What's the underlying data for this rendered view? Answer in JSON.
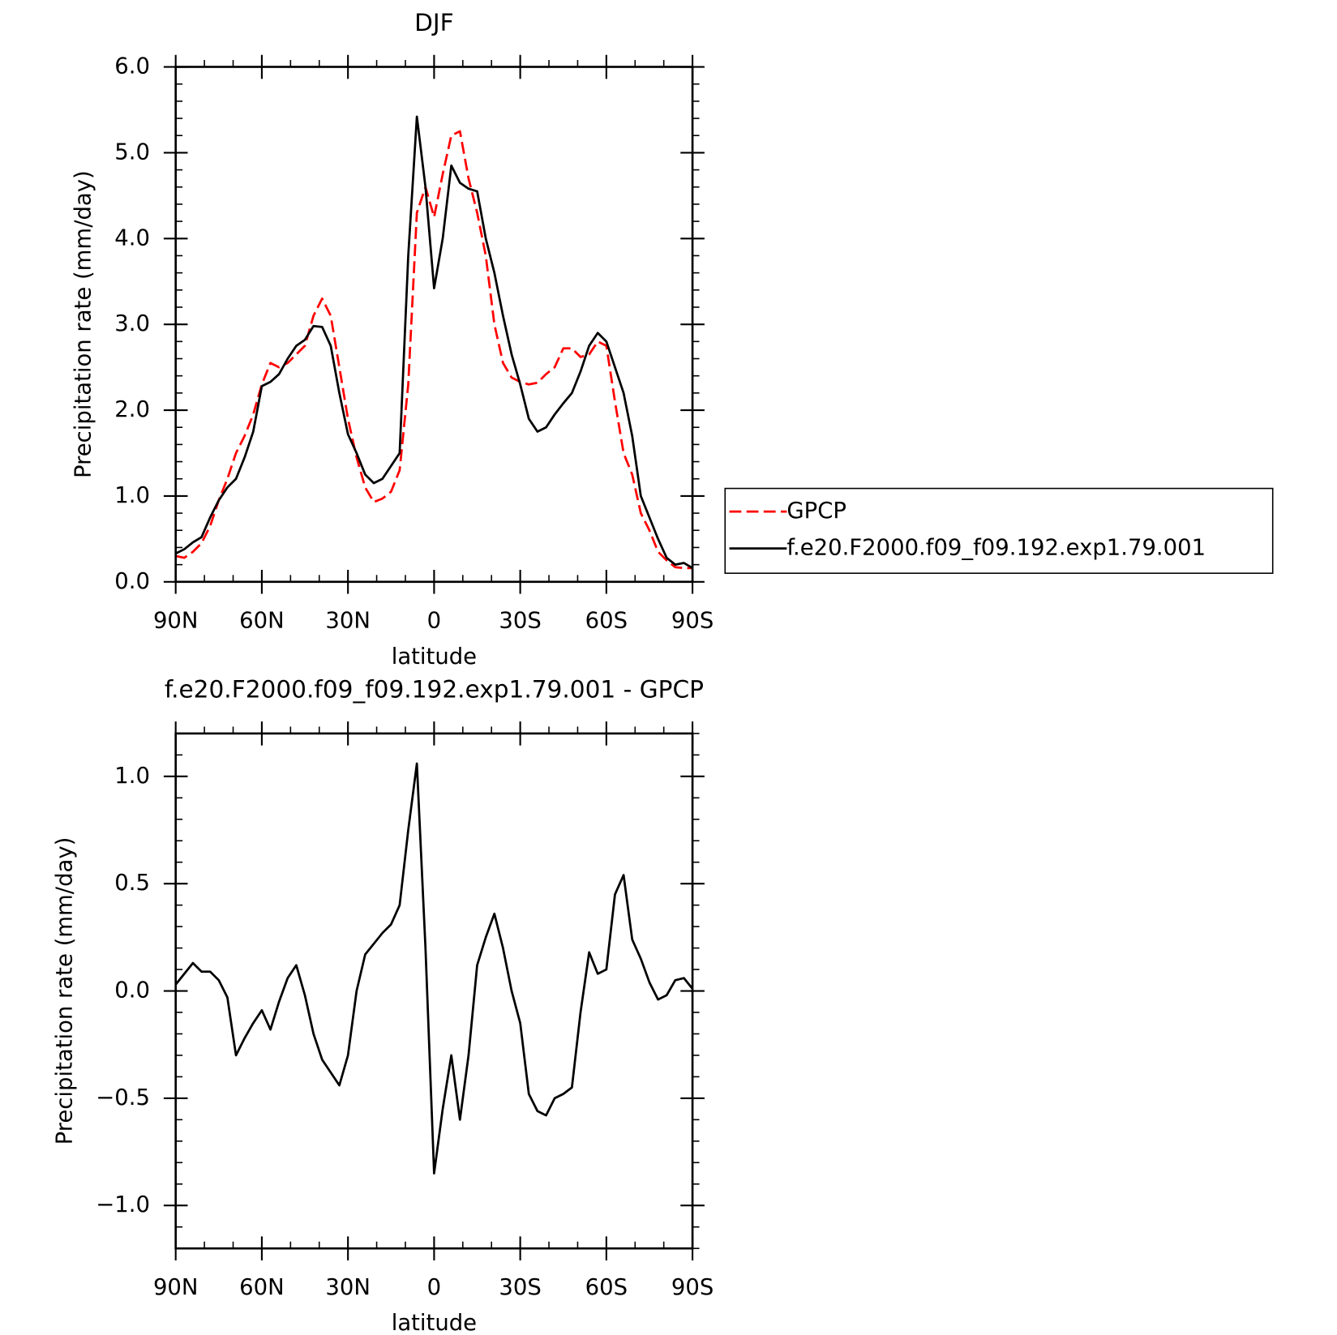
{
  "chart_data": [
    {
      "type": "line",
      "title": "DJF",
      "xlabel": "latitude",
      "ylabel": "Precipitation rate (mm/day)",
      "x": [
        90,
        87,
        84,
        81,
        78,
        75,
        72,
        69,
        66,
        63,
        60,
        57,
        54,
        51,
        48,
        45,
        42,
        39,
        36,
        33,
        30,
        27,
        24,
        21,
        18,
        15,
        12,
        9,
        6,
        3,
        0,
        -3,
        -6,
        -9,
        -12,
        -15,
        -18,
        -21,
        -24,
        -27,
        -30,
        -33,
        -36,
        -39,
        -42,
        -45,
        -48,
        -51,
        -54,
        -57,
        -60,
        -63,
        -66,
        -69,
        -72,
        -75,
        -78,
        -81,
        -84,
        -87,
        -90
      ],
      "series": [
        {
          "name": "GPCP",
          "color": "#ff0000",
          "dashed": true,
          "values": [
            0.3,
            0.28,
            0.35,
            0.45,
            0.65,
            0.95,
            1.2,
            1.5,
            1.7,
            1.95,
            2.3,
            2.55,
            2.5,
            2.55,
            2.65,
            2.75,
            3.1,
            3.3,
            3.1,
            2.5,
            1.9,
            1.45,
            1.1,
            0.93,
            0.97,
            1.05,
            1.3,
            2.3,
            4.3,
            4.6,
            4.25,
            4.75,
            5.2,
            5.25,
            4.7,
            4.3,
            3.8,
            3.0,
            2.55,
            2.38,
            2.33,
            2.3,
            2.32,
            2.42,
            2.5,
            2.72,
            2.72,
            2.62,
            2.65,
            2.8,
            2.75,
            2.1,
            1.5,
            1.25,
            0.8,
            0.6,
            0.35,
            0.25,
            0.17,
            0.16,
            0.16
          ]
        },
        {
          "name": "f.e20.F2000.f09_f09.192.exp1.79.001",
          "color": "#000000",
          "dashed": false,
          "values": [
            0.33,
            0.38,
            0.46,
            0.52,
            0.75,
            0.95,
            1.1,
            1.2,
            1.45,
            1.75,
            2.28,
            2.33,
            2.42,
            2.6,
            2.75,
            2.82,
            2.98,
            2.97,
            2.75,
            2.2,
            1.72,
            1.5,
            1.25,
            1.15,
            1.2,
            1.35,
            1.5,
            3.8,
            5.42,
            4.6,
            3.42,
            4.0,
            4.85,
            4.65,
            4.58,
            4.55,
            4.0,
            3.6,
            3.1,
            2.65,
            2.3,
            1.9,
            1.75,
            1.8,
            1.95,
            2.08,
            2.2,
            2.45,
            2.75,
            2.9,
            2.8,
            2.5,
            2.2,
            1.7,
            1.0,
            0.75,
            0.5,
            0.28,
            0.2,
            0.22,
            0.16
          ]
        }
      ],
      "xlim": [
        90,
        -90
      ],
      "xticks": [
        {
          "value": 90,
          "label": "90N"
        },
        {
          "value": 60,
          "label": "60N"
        },
        {
          "value": 30,
          "label": "30N"
        },
        0,
        {
          "value": -30,
          "label": "30S"
        },
        {
          "value": -60,
          "label": "60S"
        },
        {
          "value": -90,
          "label": "90S"
        }
      ],
      "ylim": [
        0,
        6
      ],
      "yticks": [
        {
          "value": 0,
          "label": "0.0"
        },
        {
          "value": 1,
          "label": "1.0"
        },
        {
          "value": 2,
          "label": "2.0"
        },
        {
          "value": 3,
          "label": "3.0"
        },
        {
          "value": 4,
          "label": "4.0"
        },
        {
          "value": 5,
          "label": "5.0"
        },
        {
          "value": 6,
          "label": "6.0"
        }
      ],
      "legend": "right"
    },
    {
      "type": "line",
      "title": "f.e20.F2000.f09_f09.192.exp1.79.001 - GPCP",
      "xlabel": "latitude",
      "ylabel": "Precipitation rate (mm/day)",
      "x": [
        90,
        87,
        84,
        81,
        78,
        75,
        72,
        69,
        66,
        63,
        60,
        57,
        54,
        51,
        48,
        45,
        42,
        39,
        36,
        33,
        30,
        27,
        24,
        21,
        18,
        15,
        12,
        9,
        6,
        3,
        0,
        -3,
        -6,
        -9,
        -12,
        -15,
        -18,
        -21,
        -24,
        -27,
        -30,
        -33,
        -36,
        -39,
        -42,
        -45,
        -48,
        -51,
        -54,
        -57,
        -60,
        -63,
        -66,
        -69,
        -72,
        -75,
        -78,
        -81,
        -84,
        -87,
        -90
      ],
      "values": [
        0.03,
        0.08,
        0.13,
        0.09,
        0.09,
        0.05,
        -0.03,
        -0.3,
        -0.22,
        -0.15,
        -0.09,
        -0.18,
        -0.05,
        0.06,
        0.12,
        -0.02,
        -0.2,
        -0.32,
        -0.38,
        -0.44,
        -0.3,
        0.0,
        0.17,
        0.22,
        0.27,
        0.31,
        0.4,
        0.75,
        1.06,
        0.2,
        -0.85,
        -0.55,
        -0.3,
        -0.6,
        -0.3,
        0.12,
        0.25,
        0.36,
        0.2,
        0.0,
        -0.15,
        -0.48,
        -0.56,
        -0.58,
        -0.5,
        -0.48,
        -0.45,
        -0.1,
        0.18,
        0.08,
        0.1,
        0.45,
        0.54,
        0.24,
        0.15,
        0.04,
        -0.04,
        -0.02,
        0.05,
        0.06,
        0.01
      ],
      "color": "#000000",
      "xlim": [
        90,
        -90
      ],
      "xticks": [
        {
          "value": 90,
          "label": "90N"
        },
        {
          "value": 60,
          "label": "60N"
        },
        {
          "value": 30,
          "label": "30N"
        },
        0,
        {
          "value": -30,
          "label": "30S"
        },
        {
          "value": -60,
          "label": "60S"
        },
        {
          "value": -90,
          "label": "90S"
        }
      ],
      "ylim": [
        -1.2,
        1.2
      ],
      "yticks": [
        {
          "value": -1,
          "label": "−1.0"
        },
        {
          "value": -0.5,
          "label": "−0.5"
        },
        {
          "value": 0,
          "label": "0.0"
        },
        {
          "value": 0.5,
          "label": "0.5"
        },
        {
          "value": 1,
          "label": "1.0"
        }
      ]
    }
  ]
}
